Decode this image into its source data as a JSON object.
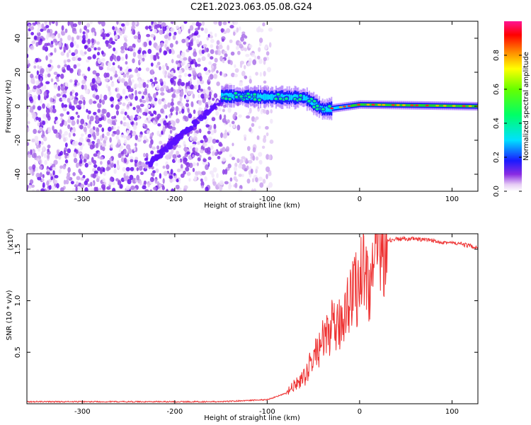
{
  "title": "C2E1.2023.063.05.08.G24",
  "chart_data": [
    {
      "type": "heatmap",
      "title": "",
      "xlabel": "Height of straight line (km)",
      "ylabel": "Frequency (Hz)",
      "xlim": [
        -360,
        128
      ],
      "ylim": [
        -50,
        50
      ],
      "xticks": [
        -300,
        -200,
        -100,
        0,
        100
      ],
      "yticks": [
        -40,
        -20,
        0,
        20,
        40
      ],
      "colorbar": {
        "label": "Normalized spectral amplitude",
        "ticks": [
          0.0,
          0.2,
          0.4,
          0.6,
          0.8
        ],
        "range": [
          0,
          1
        ]
      },
      "features": {
        "linear_trend": {
          "x": [
            -230,
            -140
          ],
          "y": [
            -35,
            8
          ]
        },
        "main_signal": {
          "x": [
            -150,
            -60,
            -40,
            0,
            128
          ],
          "y": [
            6,
            5,
            -2,
            1,
            0
          ]
        },
        "noise_region_x": [
          -360,
          -120
        ]
      }
    },
    {
      "type": "line",
      "title": "",
      "xlabel": "Height of straight line (km)",
      "ylabel": "SNR (10 * v/v)",
      "multiplier": "(x10",
      "multiplier_exp": "4",
      "multiplier_close": ")",
      "xlim": [
        -360,
        128
      ],
      "ylim": [
        0,
        1.65
      ],
      "xticks": [
        -300,
        -200,
        -100,
        0,
        100
      ],
      "yticks": [
        0.5,
        1.0,
        1.5
      ],
      "ytick_labels": [
        "0.5",
        "1.0",
        "1.5"
      ],
      "series": [
        {
          "color": "#ee3333",
          "x": [
            -360,
            -300,
            -200,
            -150,
            -100,
            -80,
            -70,
            -60,
            -50,
            -40,
            -30,
            -25,
            -20,
            -15,
            -10,
            -5,
            0,
            5,
            10,
            15,
            20,
            25,
            30,
            40,
            50,
            60,
            70,
            80,
            90,
            100,
            110,
            120,
            128
          ],
          "y": [
            0.02,
            0.02,
            0.02,
            0.02,
            0.04,
            0.1,
            0.18,
            0.25,
            0.45,
            0.6,
            0.75,
            0.7,
            0.8,
            0.95,
            1.05,
            1.1,
            1.2,
            1.35,
            1.15,
            1.3,
            1.45,
            1.55,
            1.58,
            1.6,
            1.6,
            1.6,
            1.59,
            1.58,
            1.57,
            1.56,
            1.55,
            1.53,
            1.52
          ]
        }
      ]
    }
  ]
}
